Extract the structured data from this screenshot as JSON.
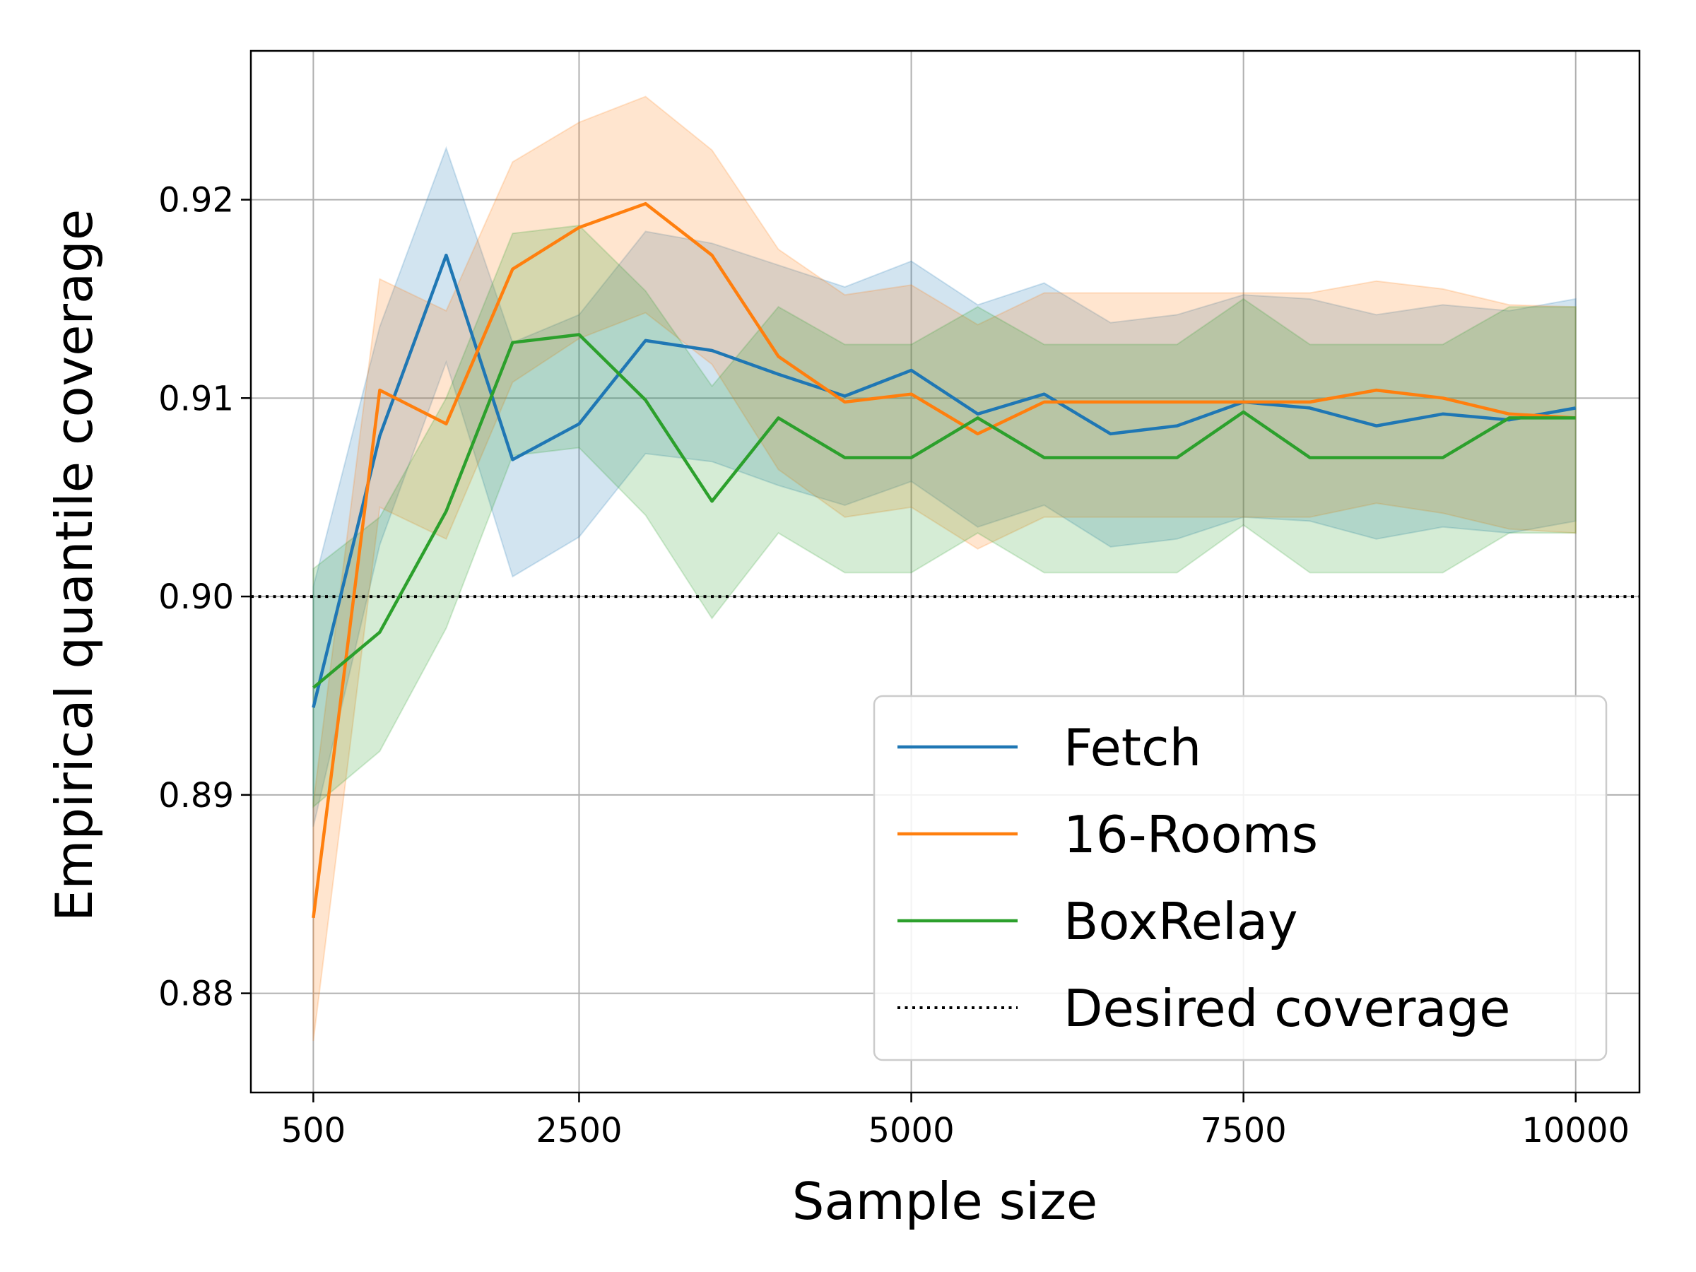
{
  "chart_data": {
    "type": "line",
    "title": "",
    "xlabel": "Sample size",
    "ylabel": "Empirical quantile coverage",
    "xlim": [
      30,
      10480
    ],
    "ylim": [
      0.875,
      0.9275
    ],
    "xticks": [
      500,
      2500,
      5000,
      7500,
      10000
    ],
    "xtick_labels": [
      "500",
      "2500",
      "5000",
      "7500",
      "10000"
    ],
    "yticks": [
      0.88,
      0.89,
      0.9,
      0.91,
      0.92
    ],
    "ytick_labels": [
      "0.88",
      "0.89",
      "0.90",
      "0.91",
      "0.92"
    ],
    "grid": true,
    "legend_position": "lower-right",
    "x": [
      500,
      1000,
      1500,
      2000,
      2500,
      3000,
      3500,
      4000,
      4500,
      5000,
      5500,
      6000,
      6500,
      7000,
      7500,
      8000,
      8500,
      9000,
      9500,
      10000
    ],
    "series": [
      {
        "name": "Fetch",
        "color": "#1f77b4",
        "values": [
          0.8944,
          0.9081,
          0.9172,
          0.9069,
          0.9087,
          0.9129,
          0.9124,
          0.9112,
          0.9101,
          0.9114,
          0.9092,
          0.9102,
          0.9082,
          0.9086,
          0.9098,
          0.9095,
          0.9086,
          0.9092,
          0.9089,
          0.9095
        ],
        "band_upper": [
          0.9005,
          0.9136,
          0.9226,
          0.9128,
          0.9142,
          0.9184,
          0.9178,
          0.9167,
          0.9156,
          0.9169,
          0.9147,
          0.9158,
          0.9138,
          0.9142,
          0.9152,
          0.915,
          0.9142,
          0.9147,
          0.9144,
          0.915
        ],
        "band_lower": [
          0.8884,
          0.9026,
          0.9118,
          0.901,
          0.903,
          0.9072,
          0.9068,
          0.9056,
          0.9046,
          0.9058,
          0.9035,
          0.9046,
          0.9025,
          0.9029,
          0.904,
          0.9038,
          0.9029,
          0.9035,
          0.9032,
          0.9038
        ]
      },
      {
        "name": "16-Rooms",
        "color": "#ff7f0e",
        "values": [
          0.8838,
          0.9104,
          0.9087,
          0.9165,
          0.9186,
          0.9198,
          0.9172,
          0.9121,
          0.9098,
          0.9102,
          0.9082,
          0.9098,
          0.9098,
          0.9098,
          0.9098,
          0.9098,
          0.9104,
          0.91,
          0.9092,
          0.909
        ],
        "band_upper": [
          0.8896,
          0.916,
          0.9144,
          0.9219,
          0.9239,
          0.9252,
          0.9225,
          0.9175,
          0.9152,
          0.9157,
          0.9137,
          0.9153,
          0.9153,
          0.9153,
          0.9153,
          0.9153,
          0.9159,
          0.9155,
          0.9147,
          0.9146
        ],
        "band_lower": [
          0.8776,
          0.9045,
          0.9029,
          0.9108,
          0.913,
          0.9143,
          0.9117,
          0.9064,
          0.904,
          0.9045,
          0.9024,
          0.904,
          0.904,
          0.904,
          0.904,
          0.904,
          0.9047,
          0.9042,
          0.9034,
          0.9032
        ]
      },
      {
        "name": "BoxRelay",
        "color": "#2ca02c",
        "values": [
          0.8954,
          0.8982,
          0.9043,
          0.9128,
          0.9132,
          0.9099,
          0.9048,
          0.909,
          0.907,
          0.907,
          0.909,
          0.907,
          0.907,
          0.907,
          0.9093,
          0.907,
          0.907,
          0.907,
          0.909,
          0.909
        ],
        "band_upper": [
          0.9014,
          0.904,
          0.91,
          0.9183,
          0.9187,
          0.9154,
          0.9106,
          0.9146,
          0.9127,
          0.9127,
          0.9146,
          0.9127,
          0.9127,
          0.9127,
          0.915,
          0.9127,
          0.9127,
          0.9127,
          0.9146,
          0.9146
        ],
        "band_lower": [
          0.8894,
          0.8922,
          0.8984,
          0.9071,
          0.9075,
          0.9041,
          0.8989,
          0.9032,
          0.9012,
          0.9012,
          0.9032,
          0.9012,
          0.9012,
          0.9012,
          0.9036,
          0.9012,
          0.9012,
          0.9012,
          0.9032,
          0.9032
        ]
      }
    ],
    "reference_line": {
      "name": "Desired coverage",
      "y": 0.9,
      "style": "dotted",
      "color": "#000000"
    }
  }
}
